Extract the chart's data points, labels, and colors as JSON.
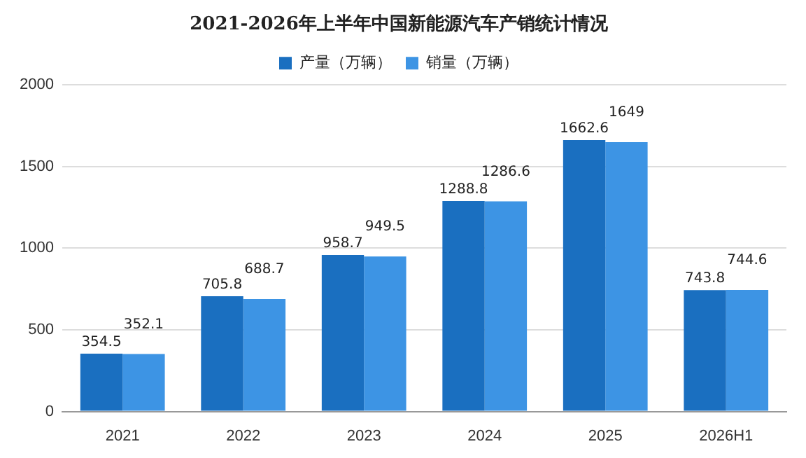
{
  "chart_data": {
    "type": "bar",
    "title": "2021-2026年上半年中国新能源汽车产销统计情况",
    "categories": [
      "2021",
      "2022",
      "2023",
      "2024",
      "2025",
      "2026H1"
    ],
    "series": [
      {
        "name": "产量（万辆）",
        "color": "#1a6fc0",
        "values": [
          354.5,
          705.8,
          958.7,
          1288.8,
          1662.6,
          743.8
        ]
      },
      {
        "name": "销量（万辆）",
        "color": "#3d94e4",
        "values": [
          352.1,
          688.7,
          949.5,
          1286.6,
          1649,
          744.6
        ]
      }
    ],
    "ylim": [
      0,
      2000
    ],
    "yticks": [
      0,
      500,
      1000,
      1500,
      2000
    ],
    "grid": "y",
    "legend": "top",
    "data_labels": true
  }
}
